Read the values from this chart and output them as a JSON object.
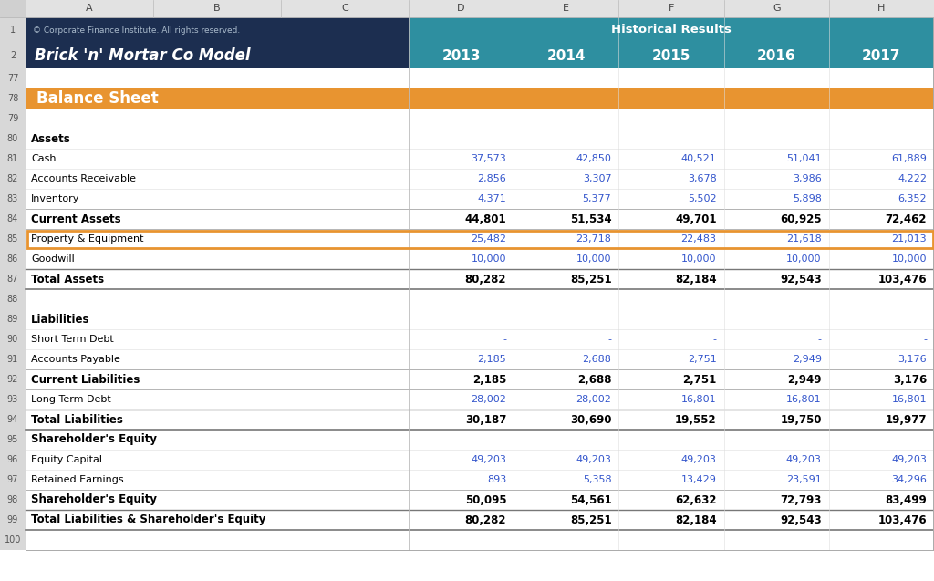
{
  "title_left": "Brick 'n' Mortar Co Model",
  "title_right": "Historical Results",
  "copyright": "© Corporate Finance Institute. All rights reserved.",
  "years": [
    "2013",
    "2014",
    "2015",
    "2016",
    "2017"
  ],
  "header_bg_left": "#1C2E50",
  "header_bg_right": "#2E8FA0",
  "balance_sheet_bg": "#E89430",
  "row_num_bg": "#D8D8D8",
  "col_letter_bg": "#E8E8E8",
  "blue_value": "#3355CC",
  "rows": [
    {
      "num": "1",
      "type": "header_copyright"
    },
    {
      "num": "2",
      "type": "header_title"
    },
    {
      "num": "77",
      "type": "empty"
    },
    {
      "num": "78",
      "type": "balance_sheet_header"
    },
    {
      "num": "79",
      "type": "empty"
    },
    {
      "num": "80",
      "type": "section_label",
      "label": "Assets"
    },
    {
      "num": "81",
      "type": "data_blue",
      "label": "Cash",
      "values": [
        "37,573",
        "42,850",
        "40,521",
        "51,041",
        "61,889"
      ]
    },
    {
      "num": "82",
      "type": "data_blue",
      "label": "Accounts Receivable",
      "values": [
        "2,856",
        "3,307",
        "3,678",
        "3,986",
        "4,222"
      ]
    },
    {
      "num": "83",
      "type": "data_blue",
      "label": "Inventory",
      "values": [
        "4,371",
        "5,377",
        "5,502",
        "5,898",
        "6,352"
      ]
    },
    {
      "num": "84",
      "type": "data_bold",
      "label": "Current Assets",
      "values": [
        "44,801",
        "51,534",
        "49,701",
        "60,925",
        "72,462"
      ]
    },
    {
      "num": "85",
      "type": "data_highlight",
      "label": "Property & Equipment",
      "values": [
        "25,482",
        "23,718",
        "22,483",
        "21,618",
        "21,013"
      ]
    },
    {
      "num": "86",
      "type": "data_blue",
      "label": "Goodwill",
      "values": [
        "10,000",
        "10,000",
        "10,000",
        "10,000",
        "10,000"
      ]
    },
    {
      "num": "87",
      "type": "data_bold_line",
      "label": "Total Assets",
      "values": [
        "80,282",
        "85,251",
        "82,184",
        "92,543",
        "103,476"
      ]
    },
    {
      "num": "88",
      "type": "empty"
    },
    {
      "num": "89",
      "type": "section_label",
      "label": "Liabilities"
    },
    {
      "num": "90",
      "type": "data_blue",
      "label": "Short Term Debt",
      "values": [
        "-",
        "-",
        "-",
        "-",
        "-"
      ]
    },
    {
      "num": "91",
      "type": "data_blue",
      "label": "Accounts Payable",
      "values": [
        "2,185",
        "2,688",
        "2,751",
        "2,949",
        "3,176"
      ]
    },
    {
      "num": "92",
      "type": "data_bold",
      "label": "Current Liabilities",
      "values": [
        "2,185",
        "2,688",
        "2,751",
        "2,949",
        "3,176"
      ]
    },
    {
      "num": "93",
      "type": "data_blue",
      "label": "Long Term Debt",
      "values": [
        "28,002",
        "28,002",
        "16,801",
        "16,801",
        "16,801"
      ]
    },
    {
      "num": "94",
      "type": "data_bold_line",
      "label": "Total Liabilities",
      "values": [
        "30,187",
        "30,690",
        "19,552",
        "19,750",
        "19,977"
      ]
    },
    {
      "num": "95",
      "type": "section_label",
      "label": "Shareholder's Equity"
    },
    {
      "num": "96",
      "type": "data_blue",
      "label": "Equity Capital",
      "values": [
        "49,203",
        "49,203",
        "49,203",
        "49,203",
        "49,203"
      ]
    },
    {
      "num": "97",
      "type": "data_blue",
      "label": "Retained Earnings",
      "values": [
        "893",
        "5,358",
        "13,429",
        "23,591",
        "34,296"
      ]
    },
    {
      "num": "98",
      "type": "data_bold",
      "label": "Shareholder's Equity",
      "values": [
        "50,095",
        "54,561",
        "62,632",
        "72,793",
        "83,499"
      ]
    },
    {
      "num": "99",
      "type": "data_bold_line",
      "label": "Total Liabilities & Shareholder's Equity",
      "values": [
        "80,282",
        "85,251",
        "82,184",
        "92,543",
        "103,476"
      ]
    },
    {
      "num": "100",
      "type": "empty"
    }
  ]
}
